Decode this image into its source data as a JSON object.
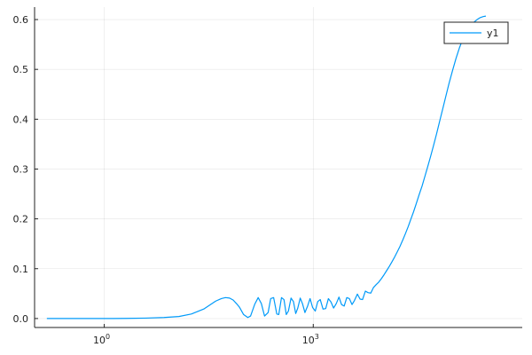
{
  "chart_data": {
    "type": "line",
    "title": "",
    "xlabel": "",
    "ylabel": "",
    "x_scale": "log10",
    "xlim": [
      0.1,
      1000000
    ],
    "ylim": [
      -0.018,
      0.625
    ],
    "grid": true,
    "legend_position": "top-right",
    "x_ticks": [
      {
        "value": 1,
        "base": "10",
        "exp": "0"
      },
      {
        "value": 1000,
        "base": "10",
        "exp": "3"
      }
    ],
    "y_ticks": [
      {
        "value": 0.0,
        "label": "0.0"
      },
      {
        "value": 0.1,
        "label": "0.1"
      },
      {
        "value": 0.2,
        "label": "0.2"
      },
      {
        "value": 0.3,
        "label": "0.3"
      },
      {
        "value": 0.4,
        "label": "0.4"
      },
      {
        "value": 0.5,
        "label": "0.5"
      },
      {
        "value": 0.6,
        "label": "0.6"
      }
    ],
    "series": [
      {
        "name": "y1",
        "color": "#009af9",
        "x": [
          0.15,
          0.5,
          1,
          2,
          3.9,
          7.2,
          11.8,
          17.8,
          26.8,
          39.8,
          48,
          55,
          63,
          71,
          79,
          87,
          100,
          115,
          126,
          145,
          162,
          180,
          200,
          225,
          245,
          270,
          300,
          320,
          350,
          380,
          410,
          440,
          480,
          520,
          560,
          600,
          650,
          700,
          760,
          830,
          900,
          980,
          1070,
          1160,
          1260,
          1380,
          1510,
          1650,
          1800,
          1960,
          2140,
          2340,
          2550,
          2780,
          3030,
          3300,
          3600,
          3900,
          4300,
          4700,
          5100,
          5600,
          6100,
          6700,
          7300,
          8000,
          8700,
          9500,
          10400,
          11300,
          12400,
          13500,
          14800,
          16100,
          17600,
          19200,
          21000,
          23000,
          25000,
          27500,
          30000,
          33000,
          36500,
          40000,
          44000,
          48500,
          53500,
          59000,
          65000,
          72000,
          80000,
          89000,
          100000,
          112000,
          126000,
          141000,
          158000,
          178000,
          200000,
          225000,
          250000,
          275000,
          300000
        ],
        "y": [
          0.0,
          0.0,
          0.0,
          0.0002,
          0.0008,
          0.002,
          0.004,
          0.009,
          0.019,
          0.035,
          0.04,
          0.042,
          0.041,
          0.037,
          0.03,
          0.023,
          0.008,
          0.002,
          0.005,
          0.029,
          0.042,
          0.03,
          0.005,
          0.012,
          0.04,
          0.042,
          0.009,
          0.008,
          0.042,
          0.038,
          0.008,
          0.015,
          0.041,
          0.034,
          0.01,
          0.021,
          0.041,
          0.03,
          0.012,
          0.025,
          0.04,
          0.022,
          0.015,
          0.034,
          0.038,
          0.019,
          0.02,
          0.04,
          0.033,
          0.021,
          0.03,
          0.043,
          0.028,
          0.025,
          0.042,
          0.04,
          0.028,
          0.036,
          0.049,
          0.039,
          0.038,
          0.055,
          0.052,
          0.051,
          0.062,
          0.068,
          0.073,
          0.08,
          0.088,
          0.096,
          0.105,
          0.114,
          0.124,
          0.134,
          0.145,
          0.157,
          0.17,
          0.184,
          0.198,
          0.214,
          0.23,
          0.248,
          0.266,
          0.285,
          0.305,
          0.326,
          0.348,
          0.371,
          0.395,
          0.42,
          0.446,
          0.472,
          0.498,
          0.522,
          0.544,
          0.562,
          0.576,
          0.586,
          0.594,
          0.6,
          0.604,
          0.606,
          0.607
        ]
      }
    ]
  }
}
